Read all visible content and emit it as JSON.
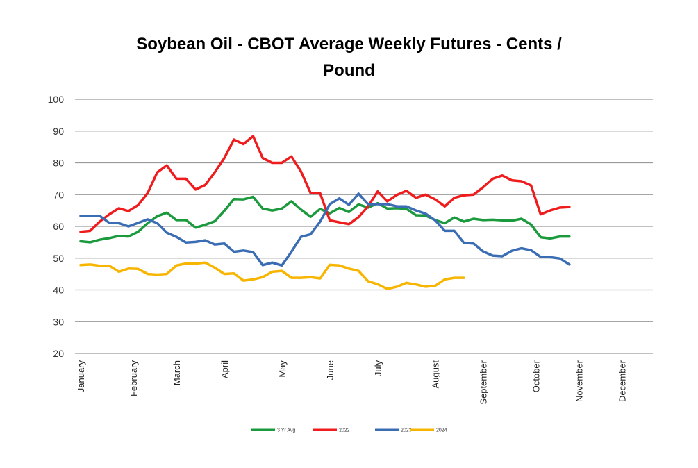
{
  "chart_data": {
    "type": "line",
    "title_line1": "Soybean Oil - CBOT Average Weekly Futures - Cents /",
    "title_line2": "Pound",
    "xlabel": "",
    "ylabel": "",
    "ylim": [
      20,
      100
    ],
    "y_ticks": [
      20,
      30,
      40,
      50,
      60,
      70,
      80,
      90,
      100
    ],
    "grid": true,
    "legend_position": "bottom",
    "months": [
      "January",
      "February",
      "March",
      "April",
      "May",
      "June",
      "July",
      "August",
      "September",
      "October",
      "November",
      "December"
    ],
    "month_week_index": [
      0,
      5.5,
      10,
      15,
      21,
      26,
      31,
      37,
      42,
      47.5,
      52,
      56.5
    ],
    "series": [
      {
        "name": "3 Yr Avg",
        "color": "#1a9a3c",
        "values": [
          55.3,
          55.0,
          55.8,
          56.3,
          57.0,
          56.8,
          58.3,
          61.0,
          63.2,
          64.3,
          62.0,
          62.0,
          59.6,
          60.5,
          61.6,
          64.9,
          68.6,
          68.5,
          69.3,
          65.6,
          65.0,
          65.6,
          67.9,
          65.3,
          63.0,
          65.5,
          64.1,
          65.8,
          64.5,
          66.9,
          65.9,
          67.3,
          65.6,
          65.7,
          65.5,
          63.5,
          63.4,
          62.0,
          61.0,
          62.8,
          61.5,
          62.4,
          62.0,
          62.1,
          61.9,
          61.8,
          62.4,
          60.6,
          56.6,
          56.2,
          56.8,
          56.8
        ]
      },
      {
        "name": "2022",
        "color": "#ee1c1c",
        "values": [
          58.3,
          58.6,
          61.5,
          63.8,
          65.7,
          64.8,
          66.7,
          70.5,
          77.0,
          79.2,
          75.0,
          75.0,
          71.6,
          73.0,
          77.0,
          81.5,
          87.3,
          85.9,
          88.4,
          81.5,
          80.0,
          80.0,
          82.0,
          77.3,
          70.5,
          70.4,
          61.9,
          61.3,
          60.7,
          62.9,
          66.3,
          71.0,
          67.9,
          69.9,
          71.2,
          69.0,
          70.0,
          68.5,
          66.3,
          69.0,
          69.8,
          70.0,
          72.3,
          75.0,
          76.0,
          74.5,
          74.2,
          72.9,
          63.8,
          65.0,
          65.9,
          66.1
        ]
      },
      {
        "name": "2023",
        "color": "#3a6db3",
        "values": [
          63.3,
          63.3,
          63.3,
          61.1,
          61.0,
          60.0,
          61.1,
          62.2,
          61.0,
          58.0,
          56.7,
          54.9,
          55.1,
          55.6,
          54.3,
          54.6,
          52.0,
          52.4,
          51.9,
          47.8,
          48.6,
          47.7,
          52.0,
          56.7,
          57.5,
          61.5,
          67.0,
          68.8,
          66.8,
          70.3,
          67.0,
          67.0,
          67.0,
          66.3,
          66.3,
          65.0,
          64.0,
          61.9,
          58.6,
          58.6,
          54.8,
          54.6,
          52.1,
          50.8,
          50.6,
          52.3,
          53.1,
          52.5,
          50.4,
          50.3,
          49.9,
          48.0
        ]
      },
      {
        "name": "2024",
        "color": "#f7b500",
        "values": [
          47.8,
          48.0,
          47.6,
          47.6,
          45.7,
          46.7,
          46.6,
          45.0,
          44.8,
          45.0,
          47.7,
          48.3,
          48.3,
          48.6,
          47.0,
          45.0,
          45.2,
          42.9,
          43.3,
          44.0,
          45.7,
          46.0,
          43.8,
          43.8,
          44.0,
          43.6,
          47.9,
          47.7,
          46.7,
          46.0,
          42.7,
          41.8,
          40.3,
          41.0,
          42.2,
          41.7,
          41.0,
          41.3,
          43.3,
          43.8,
          43.8
        ]
      }
    ]
  }
}
